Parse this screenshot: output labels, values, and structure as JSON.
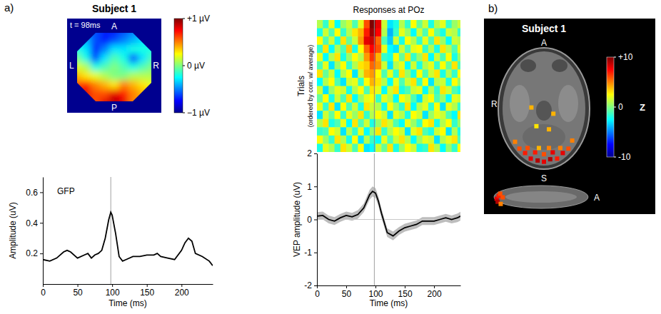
{
  "chart_data": [
    {
      "type": "heatmap",
      "panel": "a)",
      "title": "Subject 1",
      "annotation": "t = 98ms",
      "labels": {
        "top": "A",
        "bottom": "P",
        "left": "L",
        "right": "R"
      },
      "cells": [
        [
          -0.4,
          -0.5,
          -0.6,
          -0.7,
          -0.7,
          -0.6,
          -0.5,
          -0.4,
          -0.4
        ],
        [
          -0.3,
          -0.4,
          -0.6,
          -0.7,
          -0.6,
          -0.5,
          -0.4,
          -0.3,
          -0.3
        ],
        [
          -0.2,
          -0.3,
          -0.7,
          -0.5,
          -0.3,
          -0.3,
          -0.2,
          -0.2,
          -0.2
        ],
        [
          0.0,
          -0.2,
          -0.6,
          -0.3,
          -0.1,
          -0.2,
          -0.6,
          -0.3,
          -0.1
        ],
        [
          0.2,
          0.1,
          -0.2,
          -0.1,
          0.0,
          -0.1,
          -0.2,
          -0.1,
          0.0
        ],
        [
          0.4,
          0.3,
          0.2,
          0.1,
          0.0,
          0.0,
          0.1,
          0.1,
          0.1
        ],
        [
          0.6,
          0.7,
          0.5,
          0.4,
          0.3,
          0.5,
          0.4,
          0.3,
          0.2
        ],
        [
          0.7,
          0.8,
          0.6,
          0.6,
          0.8,
          0.7,
          0.5,
          0.4,
          0.3
        ],
        [
          0.6,
          0.7,
          0.6,
          0.8,
          0.9,
          0.8,
          0.5,
          0.4,
          0.3
        ]
      ],
      "colorbar": {
        "range": [
          -1,
          1
        ],
        "ticks": [
          {
            "value": 1,
            "label": "+1 µV"
          },
          {
            "value": 0,
            "label": "0 µV"
          },
          {
            "value": -1,
            "label": "−1 µV"
          }
        ]
      }
    },
    {
      "type": "line",
      "annotation": "GFP",
      "color": "#000000",
      "x": [
        0,
        10,
        20,
        30,
        35,
        40,
        50,
        60,
        65,
        70,
        75,
        80,
        85,
        90,
        95,
        98,
        100,
        105,
        110,
        115,
        120,
        130,
        140,
        150,
        160,
        165,
        170,
        180,
        190,
        200,
        205,
        210,
        215,
        220,
        230,
        240,
        245
      ],
      "values": [
        0.16,
        0.15,
        0.17,
        0.21,
        0.22,
        0.21,
        0.17,
        0.19,
        0.2,
        0.17,
        0.19,
        0.2,
        0.22,
        0.3,
        0.42,
        0.47,
        0.45,
        0.33,
        0.18,
        0.15,
        0.16,
        0.18,
        0.18,
        0.19,
        0.19,
        0.2,
        0.18,
        0.17,
        0.16,
        0.22,
        0.27,
        0.3,
        0.28,
        0.2,
        0.18,
        0.15,
        0.12
      ],
      "xlim": [
        0,
        245
      ],
      "xticks": [
        0,
        50,
        100,
        150,
        200
      ],
      "ylim": [
        0,
        0.7
      ],
      "yticks": [
        0.2,
        0.4,
        0.6
      ],
      "xlabel": "Time (ms)",
      "ylabel": "Amplitude (uV)",
      "vline": 98
    },
    {
      "type": "heatmap",
      "title": "Responses at POz",
      "ylabel": "Trials",
      "ylabel2": "(ordered by corr. w/ average)",
      "tick_labels": false,
      "xlim": [
        0,
        245
      ],
      "vline": 98,
      "color_range": [
        -2,
        2
      ],
      "x": [
        0,
        10,
        20,
        30,
        40,
        50,
        60,
        70,
        80,
        90,
        100,
        110,
        120,
        130,
        140,
        150,
        160,
        170,
        180,
        190,
        200,
        210,
        220,
        230,
        240
      ],
      "cells": [
        [
          0.2,
          -0.3,
          0.4,
          -0.5,
          0.1,
          0.3,
          -0.2,
          0.4,
          1.2,
          2.0,
          1.6,
          0.3,
          -0.6,
          -0.4,
          0.2,
          -0.3,
          0.5,
          -0.1,
          0.3,
          -0.4,
          0.2,
          0.4,
          -0.3,
          0.1,
          0.3
        ],
        [
          -0.4,
          0.3,
          -0.2,
          0.5,
          -0.3,
          0.2,
          0.6,
          0.8,
          1.4,
          1.9,
          1.5,
          0.2,
          -0.8,
          -0.3,
          0.4,
          0.1,
          -0.5,
          0.3,
          -0.2,
          0.5,
          -0.1,
          -0.4,
          0.3,
          0.2,
          -0.3
        ],
        [
          0.5,
          -0.2,
          0.3,
          -0.4,
          0.6,
          -0.1,
          0.3,
          0.9,
          1.6,
          1.7,
          1.1,
          -0.2,
          -0.7,
          0.3,
          -0.4,
          0.5,
          0.2,
          -0.3,
          0.4,
          -0.2,
          0.6,
          0.1,
          -0.5,
          0.3,
          0.2
        ],
        [
          -0.3,
          0.6,
          -0.5,
          0.2,
          -0.2,
          0.7,
          -0.4,
          0.5,
          1.1,
          1.5,
          1.2,
          0.4,
          -0.5,
          -0.6,
          0.3,
          -0.2,
          0.4,
          0.5,
          -0.3,
          0.2,
          -0.4,
          0.6,
          0.2,
          -0.2,
          0.4
        ],
        [
          0.4,
          -0.5,
          0.2,
          0.6,
          -0.4,
          0.1,
          0.5,
          0.2,
          0.9,
          1.3,
          0.8,
          -0.3,
          -0.4,
          0.5,
          -0.1,
          0.6,
          -0.3,
          0.1,
          0.6,
          -0.5,
          0.3,
          -0.2,
          0.5,
          -0.4,
          0.1
        ],
        [
          -0.2,
          0.4,
          -0.6,
          0.1,
          0.5,
          -0.3,
          0.2,
          0.6,
          0.7,
          1.1,
          0.9,
          0.3,
          -0.6,
          0.2,
          0.4,
          -0.5,
          0.3,
          -0.4,
          0.2,
          0.4,
          -0.3,
          0.5,
          -0.1,
          0.6,
          -0.2
        ],
        [
          0.6,
          -0.1,
          0.3,
          -0.5,
          0.2,
          0.5,
          -0.6,
          0.3,
          0.8,
          0.9,
          0.5,
          -0.2,
          0.4,
          -0.3,
          0.6,
          0.1,
          -0.4,
          0.5,
          -0.2,
          0.3,
          0.6,
          -0.4,
          0.2,
          -0.3,
          0.5
        ],
        [
          -0.5,
          0.2,
          0.5,
          -0.2,
          -0.6,
          0.3,
          0.4,
          -0.3,
          0.5,
          0.8,
          0.6,
          0.2,
          -0.5,
          0.4,
          -0.2,
          0.3,
          0.6,
          -0.3,
          0.5,
          -0.6,
          0.2,
          0.3,
          -0.4,
          0.5,
          0.1
        ],
        [
          0.3,
          -0.6,
          0.1,
          0.4,
          0.3,
          -0.4,
          0.2,
          0.5,
          -0.2,
          0.6,
          0.4,
          -0.5,
          0.3,
          0.6,
          -0.4,
          -0.2,
          0.3,
          0.4,
          -0.5,
          0.2,
          -0.3,
          0.6,
          0.3,
          -0.2,
          -0.4
        ],
        [
          -0.1,
          0.5,
          -0.4,
          0.3,
          -0.2,
          0.6,
          -0.5,
          0.1,
          0.4,
          0.5,
          -0.3,
          0.4,
          0.2,
          -0.5,
          0.5,
          0.3,
          -0.2,
          -0.6,
          0.3,
          0.5,
          -0.2,
          0.1,
          -0.5,
          0.4,
          0.3
        ],
        [
          0.4,
          -0.3,
          0.6,
          -0.6,
          0.5,
          -0.2,
          0.3,
          -0.4,
          0.6,
          0.3,
          0.2,
          -0.4,
          0.5,
          0.1,
          -0.3,
          0.6,
          -0.5,
          0.2,
          0.4,
          -0.3,
          0.5,
          -0.6,
          0.4,
          0.2,
          -0.3
        ],
        [
          -0.6,
          0.3,
          -0.1,
          0.5,
          -0.3,
          0.4,
          0.1,
          0.6,
          -0.3,
          0.2,
          0.5,
          0.3,
          -0.6,
          0.4,
          0.2,
          -0.4,
          0.5,
          0.3,
          -0.6,
          0.1,
          0.4,
          0.3,
          -0.2,
          -0.5,
          0.6
        ],
        [
          0.2,
          0.6,
          -0.4,
          -0.2,
          0.4,
          -0.5,
          0.6,
          -0.2,
          0.3,
          -0.4,
          0.1,
          0.6,
          0.3,
          -0.2,
          -0.5,
          0.4,
          0.1,
          -0.3,
          0.5,
          0.6,
          -0.4,
          0.2,
          0.5,
          -0.3,
          0.1
        ],
        [
          -0.3,
          -0.2,
          0.5,
          0.3,
          -0.6,
          0.2,
          -0.3,
          0.4,
          -0.5,
          0.1,
          0.6,
          -0.3,
          0.2,
          0.5,
          0.3,
          -0.6,
          0.4,
          0.6,
          -0.2,
          -0.4,
          0.3,
          0.5,
          -0.6,
          0.2,
          -0.4
        ],
        [
          0.5,
          0.1,
          -0.3,
          0.6,
          0.2,
          -0.4,
          0.5,
          -0.6,
          0.2,
          -0.3,
          -0.5,
          0.4,
          -0.2,
          0.3,
          0.6,
          0.2,
          -0.5,
          0.1,
          0.4,
          0.3,
          -0.6,
          0.2,
          0.4,
          0.6,
          -0.2
        ],
        [
          -0.4,
          0.4,
          0.2,
          -0.3,
          0.6,
          0.3,
          -0.2,
          0.5,
          -0.6,
          -0.5,
          0.3,
          -0.1,
          0.6,
          -0.4,
          0.1,
          0.5,
          0.3,
          -0.4,
          -0.3,
          0.6,
          0.2,
          -0.5,
          0.1,
          -0.3,
          0.5
        ]
      ]
    },
    {
      "type": "line",
      "color": "#000000",
      "x": [
        0,
        10,
        20,
        30,
        40,
        50,
        60,
        70,
        80,
        85,
        90,
        95,
        100,
        105,
        110,
        120,
        130,
        140,
        150,
        160,
        170,
        180,
        190,
        200,
        210,
        220,
        230,
        240,
        245
      ],
      "values": [
        0.1,
        0.12,
        0.0,
        -0.05,
        0.05,
        0.12,
        0.08,
        0.15,
        0.35,
        0.55,
        0.75,
        0.85,
        0.8,
        0.55,
        0.2,
        -0.4,
        -0.5,
        -0.35,
        -0.25,
        -0.2,
        -0.15,
        -0.05,
        -0.05,
        -0.05,
        0.0,
        0.05,
        0.0,
        0.05,
        0.1
      ],
      "error": [
        0.12,
        0.12,
        0.12,
        0.12,
        0.12,
        0.12,
        0.12,
        0.13,
        0.13,
        0.14,
        0.15,
        0.15,
        0.15,
        0.14,
        0.14,
        0.13,
        0.13,
        0.12,
        0.12,
        0.12,
        0.12,
        0.12,
        0.12,
        0.12,
        0.12,
        0.12,
        0.12,
        0.13,
        0.13
      ],
      "xlim": [
        0,
        245
      ],
      "xticks": [
        0,
        50,
        100,
        150,
        200
      ],
      "ylim": [
        -2,
        2
      ],
      "yticks": [
        -2,
        -1,
        0,
        1,
        2
      ],
      "xlabel": "Time (ms)",
      "ylabel": "VEP amplitude (uV)",
      "vline": 98,
      "hline": 0
    },
    {
      "type": "image",
      "panel": "b)",
      "title": "Subject 1",
      "labels": {
        "axial_top": "A",
        "axial_left": "R",
        "sagittal_top": "S",
        "sagittal_right": "A"
      },
      "axial": {
        "xlim": [
          -75,
          75
        ],
        "ylim": [
          -110,
          80
        ],
        "points": [
          {
            "x": -46,
            "y": -65,
            "z": 5
          },
          {
            "x": -39,
            "y": -76,
            "z": 6
          },
          {
            "x": -30,
            "y": -83,
            "z": 7
          },
          {
            "x": -21,
            "y": -92,
            "z": 8
          },
          {
            "x": -10,
            "y": -95,
            "z": 9
          },
          {
            "x": 0,
            "y": -97,
            "z": 8
          },
          {
            "x": 10,
            "y": -93,
            "z": 9
          },
          {
            "x": 21,
            "y": -92,
            "z": 7
          },
          {
            "x": 30,
            "y": -83,
            "z": 8
          },
          {
            "x": 39,
            "y": -76,
            "z": 6
          },
          {
            "x": 45,
            "y": -63,
            "z": 5
          },
          {
            "x": -26,
            "y": -75,
            "z": 6
          },
          {
            "x": -14,
            "y": -82,
            "z": 7
          },
          {
            "x": 0,
            "y": -85,
            "z": 6
          },
          {
            "x": 14,
            "y": -82,
            "z": 8
          },
          {
            "x": 26,
            "y": -75,
            "z": 5
          },
          {
            "x": -8,
            "y": -75,
            "z": 4
          },
          {
            "x": 8,
            "y": -75,
            "z": 5
          },
          {
            "x": 8,
            "y": -45,
            "z": 4
          },
          {
            "x": -12,
            "y": -40,
            "z": 3
          },
          {
            "x": 15,
            "y": -20,
            "z": 4
          },
          {
            "x": -20,
            "y": -10,
            "z": 4
          }
        ]
      },
      "sagittal": {
        "xlim": [
          -110,
          80
        ],
        "ylim": [
          -30,
          40
        ],
        "points": [
          {
            "x": -102,
            "y": 0,
            "z": 8
          },
          {
            "x": -98,
            "y": 8,
            "z": 7
          },
          {
            "x": -100,
            "y": -8,
            "z": 9
          },
          {
            "x": -95,
            "y": 14,
            "z": 6
          },
          {
            "x": -94,
            "y": -14,
            "z": 5
          },
          {
            "x": -90,
            "y": 4,
            "z": 6
          }
        ]
      },
      "colorbar": {
        "range": [
          -10,
          10
        ],
        "ticks": [
          {
            "value": 10,
            "label": "+10"
          },
          0,
          -10
        ],
        "label": "Z"
      }
    }
  ]
}
